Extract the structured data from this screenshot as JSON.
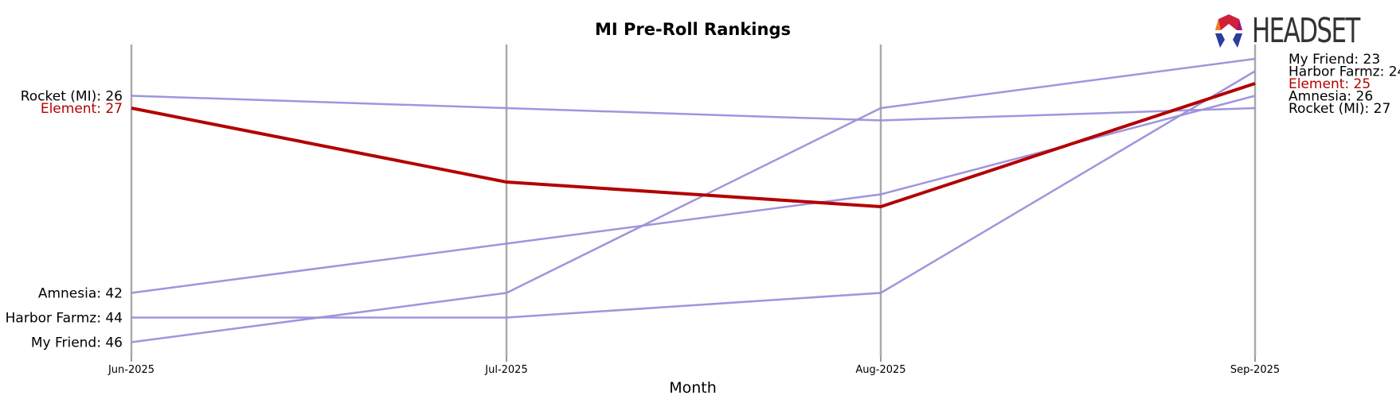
{
  "brand": {
    "logo_text": "HEADSET"
  },
  "chart_data": {
    "type": "line",
    "title": "MI Pre-Roll Rankings",
    "xlabel": "Month",
    "ylabel": "",
    "categories": [
      "Jun-2025",
      "Jul-2025",
      "Aug-2025",
      "Sep-2025"
    ],
    "y_inverted": true,
    "ylim": [
      23,
      46
    ],
    "grid": "vertical lines at each month",
    "series": [
      {
        "name": "Rocket (MI)",
        "values": [
          26,
          27,
          28,
          27
        ],
        "color": "#9b8fdb",
        "highlight": false
      },
      {
        "name": "Amnesia",
        "values": [
          42,
          38,
          34,
          26
        ],
        "color": "#9b8fdb",
        "highlight": false
      },
      {
        "name": "Harbor Farmz",
        "values": [
          44,
          44,
          42,
          24
        ],
        "color": "#9b8fdb",
        "highlight": false
      },
      {
        "name": "My Friend",
        "values": [
          46,
          42,
          27,
          23
        ],
        "color": "#9b8fdb",
        "highlight": false
      },
      {
        "name": "Element",
        "values": [
          27,
          33,
          35,
          25
        ],
        "color": "#b30000",
        "highlight": true
      }
    ]
  }
}
